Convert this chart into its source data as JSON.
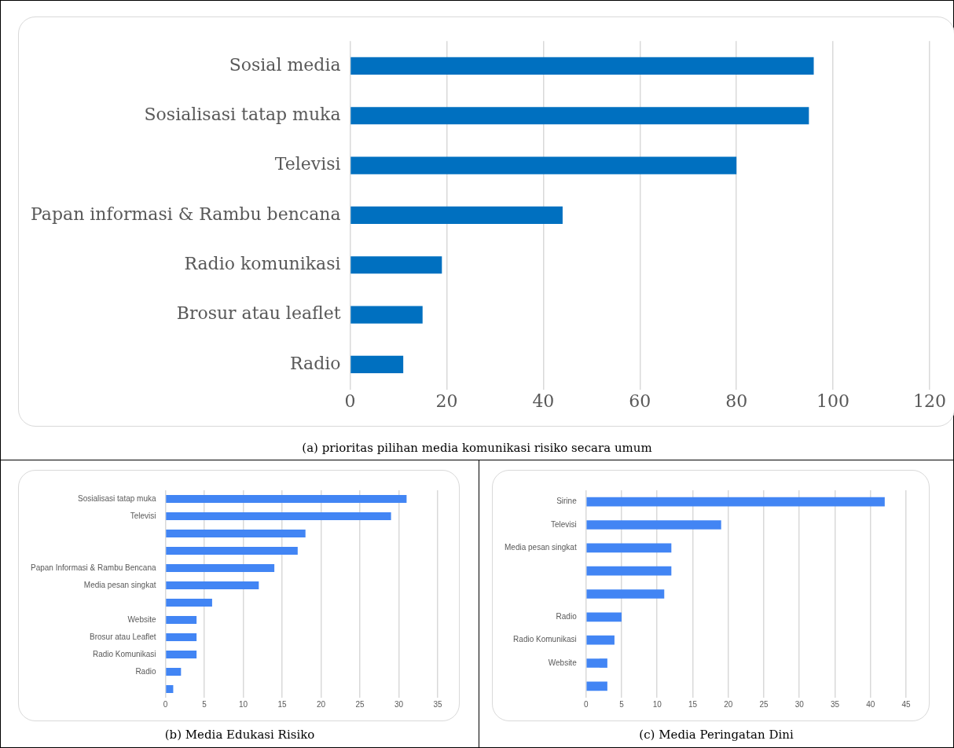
{
  "chart_data": [
    {
      "type": "bar",
      "orientation": "horizontal",
      "title": "(a) prioritas pilihan media komunikasi risiko secara umum",
      "categories": [
        "Sosial media",
        "Sosialisasi tatap muka",
        "Televisi",
        "Papan informasi & Rambu bencana",
        "Radio komunikasi",
        "Brosur atau leaflet",
        "Radio"
      ],
      "values": [
        96,
        95,
        80,
        44,
        19,
        15,
        11
      ],
      "color": "#0070c0",
      "xlim": [
        0,
        120
      ],
      "xticks": [
        0,
        20,
        40,
        60,
        80,
        100,
        120
      ],
      "grid": "x"
    },
    {
      "type": "bar",
      "orientation": "horizontal",
      "title": "(b) Media Edukasi Risiko",
      "categories": [
        "Sosialisasi tatap muka",
        "Televisi",
        null,
        null,
        "Papan Informasi & Rambu Bencana",
        "Media pesan singkat",
        null,
        "Website",
        "Brosur atau Leaflet",
        "Radio Komunikasi",
        "Radio",
        null
      ],
      "values": [
        31,
        29,
        18,
        17,
        14,
        12,
        6,
        4,
        4,
        4,
        2,
        1
      ],
      "color": "#4285f4",
      "xlim": [
        0,
        35
      ],
      "xticks": [
        0,
        5,
        10,
        15,
        20,
        25,
        30,
        35
      ],
      "grid": "x"
    },
    {
      "type": "bar",
      "orientation": "horizontal",
      "title": "(c) Media Peringatan Dini",
      "categories": [
        "Sirine",
        "Televisi",
        "Media pesan singkat",
        null,
        null,
        "Radio",
        "Radio Komunikasi",
        "Website",
        null
      ],
      "values": [
        42,
        19,
        12,
        12,
        11,
        5,
        4,
        3,
        3
      ],
      "color": "#4285f4",
      "xlim": [
        0,
        45
      ],
      "xticks": [
        0,
        5,
        10,
        15,
        20,
        25,
        30,
        35,
        40,
        45
      ],
      "grid": "x"
    }
  ]
}
